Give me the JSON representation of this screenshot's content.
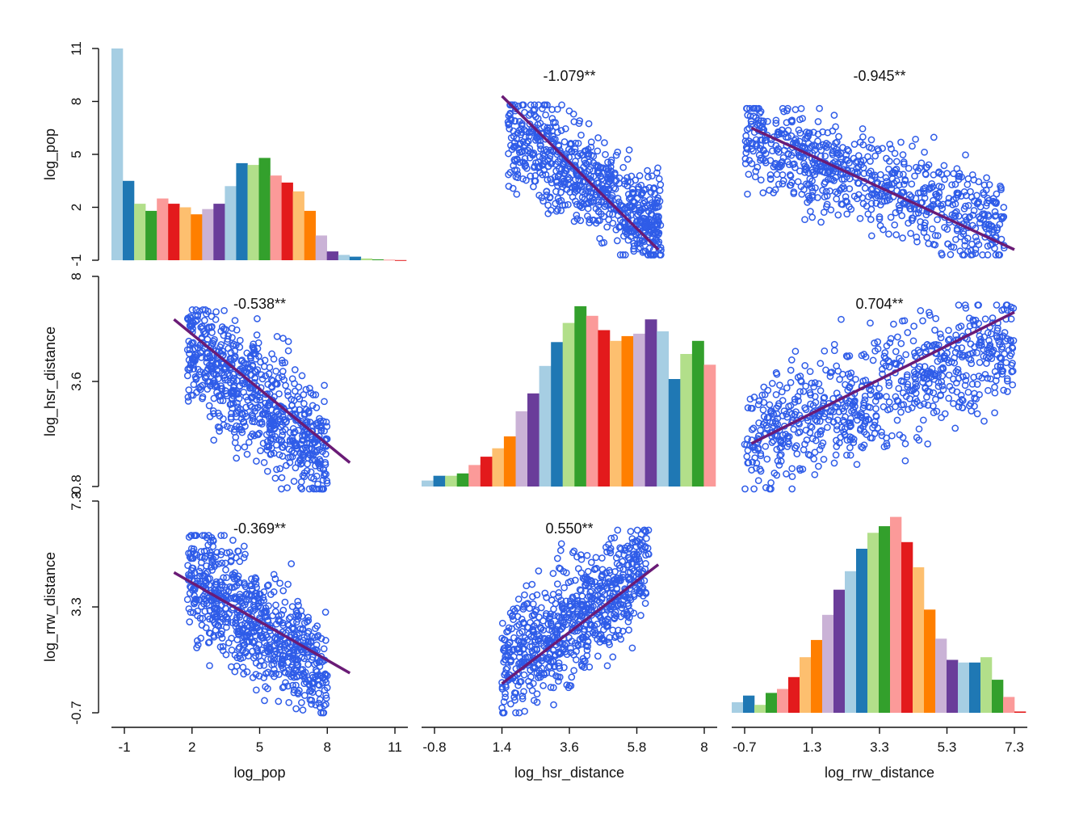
{
  "chart_data": {
    "type": "scatter-matrix",
    "variables": [
      "log_pop",
      "log_hsr_distance",
      "log_rrw_distance"
    ],
    "axes": {
      "log_pop": {
        "ticks": [
          -1,
          2,
          5,
          8,
          11
        ],
        "tick_labels": [
          "-1",
          "2",
          "5",
          "8",
          "11"
        ],
        "range": [
          -1,
          11
        ]
      },
      "log_hsr_distance": {
        "ticks": [
          -0.8,
          1.4,
          3.6,
          5.8,
          8
        ],
        "tick_labels": [
          "-0.8",
          "1.4",
          "3.6",
          "5.8",
          "8"
        ],
        "range": [
          -0.8,
          8
        ]
      },
      "log_rrw_distance": {
        "ticks": [
          -0.7,
          1.3,
          3.3,
          5.3,
          7.3
        ],
        "tick_labels": [
          "-0.7",
          "1.3",
          "3.3",
          "5.3",
          "7.3"
        ],
        "range": [
          -0.7,
          7.3
        ]
      }
    },
    "y_axis_tick_labels": {
      "log_pop": [
        "-1",
        "2",
        "5",
        "8",
        "11"
      ],
      "log_hsr_distance": [
        "-0.8",
        "3.6",
        "8"
      ],
      "log_rrw_distance": [
        "-0.7",
        "3.3",
        "7.3"
      ]
    },
    "histograms": [
      {
        "variable": "log_pop",
        "bin_start": -1,
        "bin_width": 0.7,
        "values": [
          11.0,
          3.5,
          2.2,
          1.8,
          2.5,
          2.2,
          2.0,
          1.6,
          1.9,
          2.2,
          3.2,
          4.5,
          4.4,
          4.8,
          3.8,
          3.4,
          2.9,
          1.8,
          0.4,
          -0.5,
          -0.7,
          -0.8,
          -0.9,
          -0.95,
          -0.97,
          -0.99
        ]
      },
      {
        "variable": "log_hsr_distance",
        "bin_start": -0.8,
        "bin_width": 0.4,
        "values": [
          -0.55,
          -0.35,
          -0.35,
          -0.25,
          0.1,
          0.45,
          0.8,
          1.3,
          2.35,
          3.1,
          4.25,
          5.25,
          6.05,
          6.75,
          6.35,
          5.75,
          5.3,
          5.5,
          5.6,
          6.2,
          5.7,
          3.7,
          4.75,
          5.3,
          4.3
        ]
      },
      {
        "variable": "log_rrw_distance",
        "bin_start": -1.5,
        "bin_width": 0.43,
        "values": [
          -0.3,
          -0.05,
          -0.4,
          0.05,
          0.2,
          0.65,
          1.4,
          2.05,
          3.0,
          3.95,
          4.65,
          5.5,
          6.1,
          6.35,
          6.7,
          5.75,
          4.8,
          3.2,
          2.1,
          1.3,
          1.2,
          1.2,
          1.4,
          0.55,
          -0.1,
          -0.65
        ]
      }
    ],
    "histogram_colors": [
      "#a6cee3",
      "#1f78b4",
      "#b2df8a",
      "#33a02c",
      "#fb9a99",
      "#e31a1c",
      "#fdbf6f",
      "#ff7f00",
      "#cab2d6",
      "#6a3d9a"
    ],
    "correlations": [
      {
        "row": "log_pop",
        "col": "log_hsr_distance",
        "label": "-1.079**"
      },
      {
        "row": "log_pop",
        "col": "log_rrw_distance",
        "label": "-0.945**"
      },
      {
        "row": "log_hsr_distance",
        "col": "log_pop",
        "label": "-0.538**"
      },
      {
        "row": "log_hsr_distance",
        "col": "log_rrw_distance",
        "label": "0.704**"
      },
      {
        "row": "log_rrw_distance",
        "col": "log_pop",
        "label": "-0.369**"
      },
      {
        "row": "log_rrw_distance",
        "col": "log_hsr_distance",
        "label": "0.550**"
      }
    ],
    "regression_lines": [
      {
        "row": "log_pop",
        "col": "log_hsr_distance",
        "x": [
          1.4,
          6.5
        ],
        "y": [
          8.3,
          -0.4
        ]
      },
      {
        "row": "log_pop",
        "col": "log_rrw_distance",
        "x": [
          -0.5,
          7.3
        ],
        "y": [
          6.5,
          -0.4
        ]
      },
      {
        "row": "log_hsr_distance",
        "col": "log_pop",
        "x": [
          1.2,
          9.0
        ],
        "y": [
          6.2,
          0.2
        ]
      },
      {
        "row": "log_hsr_distance",
        "col": "log_rrw_distance",
        "x": [
          -0.5,
          7.3
        ],
        "y": [
          1.0,
          6.5
        ]
      },
      {
        "row": "log_rrw_distance",
        "col": "log_pop",
        "x": [
          1.2,
          9.0
        ],
        "y": [
          4.6,
          0.8
        ]
      },
      {
        "row": "log_rrw_distance",
        "col": "log_hsr_distance",
        "x": [
          1.4,
          6.5
        ],
        "y": [
          0.4,
          4.9
        ]
      }
    ],
    "scatter_clouds": [
      {
        "row": "log_pop",
        "col": "log_hsr_distance",
        "n": 750,
        "x_range": [
          1.6,
          6.6
        ],
        "y_range": [
          -0.7,
          7.8
        ],
        "trend": "negative",
        "floor": -0.7
      },
      {
        "row": "log_pop",
        "col": "log_rrw_distance",
        "n": 750,
        "x_range": [
          -0.7,
          7.0
        ],
        "y_range": [
          -0.7,
          7.6
        ],
        "trend": "negative",
        "floor": -0.7
      },
      {
        "row": "log_hsr_distance",
        "col": "log_pop",
        "n": 750,
        "x_range": [
          1.8,
          8.0
        ],
        "y_range": [
          -0.9,
          6.6
        ],
        "trend": "negative"
      },
      {
        "row": "log_hsr_distance",
        "col": "log_rrw_distance",
        "n": 750,
        "x_range": [
          -0.7,
          7.3
        ],
        "y_range": [
          -0.9,
          6.8
        ],
        "trend": "positive"
      },
      {
        "row": "log_rrw_distance",
        "col": "log_pop",
        "n": 750,
        "x_range": [
          1.8,
          8.0
        ],
        "y_range": [
          -0.7,
          6.0
        ],
        "trend": "negative"
      },
      {
        "row": "log_rrw_distance",
        "col": "log_hsr_distance",
        "n": 750,
        "x_range": [
          1.4,
          6.2
        ],
        "y_range": [
          -0.7,
          6.2
        ],
        "trend": "positive"
      }
    ],
    "point_color": "#2f5ce8",
    "line_color": "#6a1b76",
    "xlabels": [
      "log_pop",
      "log_hsr_distance",
      "log_rrw_distance"
    ],
    "ylabels": [
      "log_pop",
      "log_hsr_distance",
      "log_rrw_distance"
    ]
  }
}
